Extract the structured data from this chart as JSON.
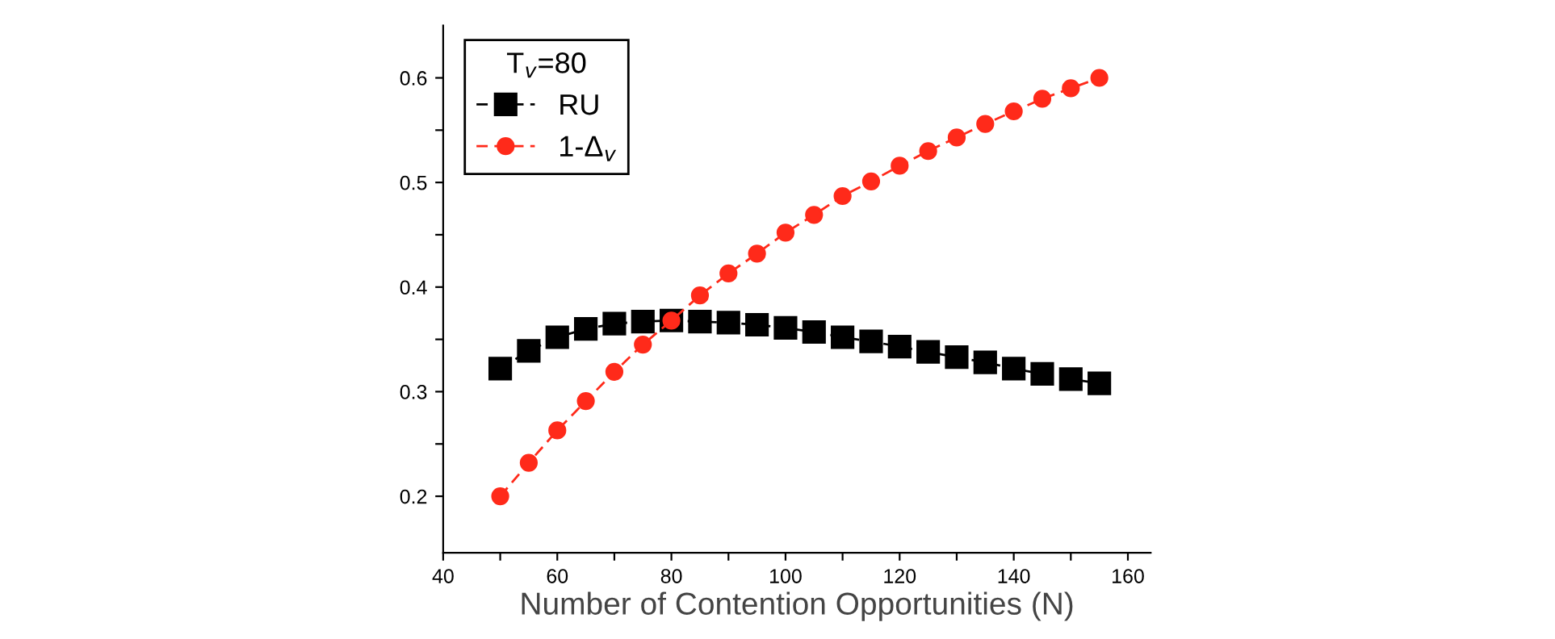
{
  "chart_data": {
    "type": "line",
    "xlabel": "Number of Contention Opportunities (N)",
    "legend_title": "T$_{v}$=80",
    "legend": "top left",
    "line_style": "dashed",
    "grid": false,
    "x": [
      50,
      55,
      60,
      65,
      70,
      75,
      80,
      85,
      90,
      95,
      100,
      105,
      110,
      115,
      120,
      125,
      130,
      135,
      140,
      145,
      150,
      155
    ],
    "series": [
      {
        "name": "RU",
        "color": "#000000",
        "marker": "square",
        "values": [
          0.322,
          0.339,
          0.352,
          0.36,
          0.365,
          0.367,
          0.368,
          0.367,
          0.366,
          0.364,
          0.361,
          0.357,
          0.352,
          0.348,
          0.343,
          0.338,
          0.333,
          0.328,
          0.322,
          0.317,
          0.312,
          0.308
        ]
      },
      {
        "name": "1-Δ$_{v}$",
        "color": "#ff2a1a",
        "marker": "circle",
        "values": [
          0.2,
          0.232,
          0.263,
          0.291,
          0.319,
          0.345,
          0.368,
          0.392,
          0.413,
          0.432,
          0.452,
          0.469,
          0.487,
          0.501,
          0.516,
          0.53,
          0.543,
          0.556,
          0.568,
          0.58,
          0.59,
          0.6
        ]
      }
    ],
    "xlim": [
      40,
      164
    ],
    "ylim": [
      0.146,
      0.65
    ],
    "xticks": [
      40,
      {
        "value": 50,
        "label": null
      },
      60,
      {
        "value": 70,
        "label": null
      },
      80,
      {
        "value": 90,
        "label": null
      },
      100,
      {
        "value": 110,
        "label": null
      },
      120,
      {
        "value": 130,
        "label": null
      },
      140,
      {
        "value": 150,
        "label": null
      },
      160
    ],
    "yticks": [
      0.2,
      {
        "value": 0.25,
        "label": null
      },
      0.3,
      {
        "value": 0.35,
        "label": null
      },
      0.4,
      {
        "value": 0.45,
        "label": null
      },
      0.5,
      {
        "value": 0.55,
        "label": null
      },
      0.6
    ]
  }
}
